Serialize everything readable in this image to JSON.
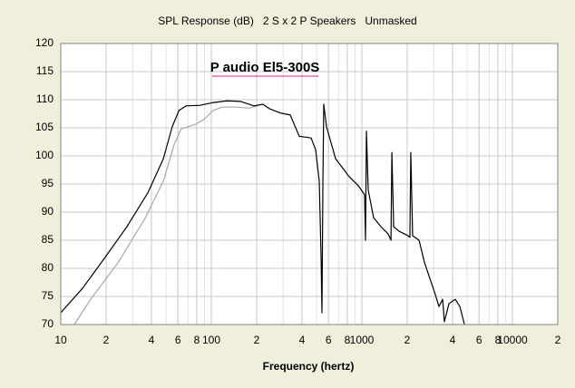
{
  "chart_data": {
    "type": "line",
    "title": "SPL Response (dB)   2 S x 2 P Speakers   Unmasked",
    "annotation": "P audio El5-300S",
    "annotation_color": "#e0208c",
    "xlabel": "Frequency (hertz)",
    "xscale": "log",
    "log_minor_grid": true,
    "grid": true,
    "xlim": [
      10,
      20000
    ],
    "ylim": [
      70,
      120
    ],
    "xticks": [
      10,
      {
        "value": 20,
        "label": "2"
      },
      {
        "value": 40,
        "label": "4"
      },
      {
        "value": 60,
        "label": "6"
      },
      {
        "value": 80,
        "label": "8"
      },
      100,
      {
        "value": 200,
        "label": "2"
      },
      {
        "value": 400,
        "label": "4"
      },
      {
        "value": 600,
        "label": "6"
      },
      {
        "value": 800,
        "label": "8"
      },
      1000,
      {
        "value": 2000,
        "label": "2"
      },
      {
        "value": 4000,
        "label": "4"
      },
      {
        "value": 6000,
        "label": "6"
      },
      {
        "value": 8000,
        "label": "8"
      },
      10000,
      {
        "value": 20000,
        "label": "2"
      }
    ],
    "yticks": [
      70,
      75,
      80,
      85,
      90,
      95,
      100,
      105,
      110,
      115,
      120
    ],
    "series": [
      {
        "color": "#000000",
        "x": [
          10,
          14,
          19.5,
          27.5,
          38,
          48,
          55,
          61,
          68,
          84,
          103,
          127,
          156,
          192,
          220,
          243,
          291,
          334,
          384,
          460,
          493,
          521,
          536,
          543,
          551,
          558,
          582,
          669,
          824,
          946,
          1042,
          1057,
          1072,
          1102,
          1197,
          1340,
          1496,
          1560,
          1582,
          1626,
          1766,
          2028,
          2084,
          2113,
          2173,
          2397,
          2607,
          2871,
          3077,
          3252,
          3436,
          3532,
          3785,
          4169,
          4477,
          4797
        ],
        "values": [
          72.1,
          76.5,
          81.8,
          87.4,
          93.5,
          99.5,
          105.2,
          108.1,
          108.9,
          109,
          109.5,
          109.8,
          109.7,
          108.9,
          109.2,
          108.4,
          107.6,
          107.3,
          103.5,
          103.2,
          101.1,
          95.5,
          81.8,
          72.1,
          95.5,
          109.2,
          105.2,
          99.5,
          96.3,
          94.7,
          93.1,
          85,
          104.4,
          93.9,
          89,
          87.4,
          86.1,
          85,
          100.6,
          87.4,
          86.6,
          85.8,
          85.5,
          100.6,
          85.8,
          85,
          81,
          77.7,
          75.3,
          73.2,
          74.5,
          70.5,
          73.7,
          74.5,
          73.2,
          70
        ]
      },
      {
        "color": "#a8a8a8",
        "x": [
          12.3,
          15.8,
          24,
          36.3,
          48,
          56.6,
          63,
          78,
          89.5,
          103,
          118,
          145,
          179,
          220
        ],
        "values": [
          70,
          74.5,
          81,
          88.9,
          95.5,
          102,
          104.8,
          105.6,
          106.5,
          108.1,
          108.7,
          108.7,
          108.5,
          109.2
        ]
      }
    ]
  }
}
